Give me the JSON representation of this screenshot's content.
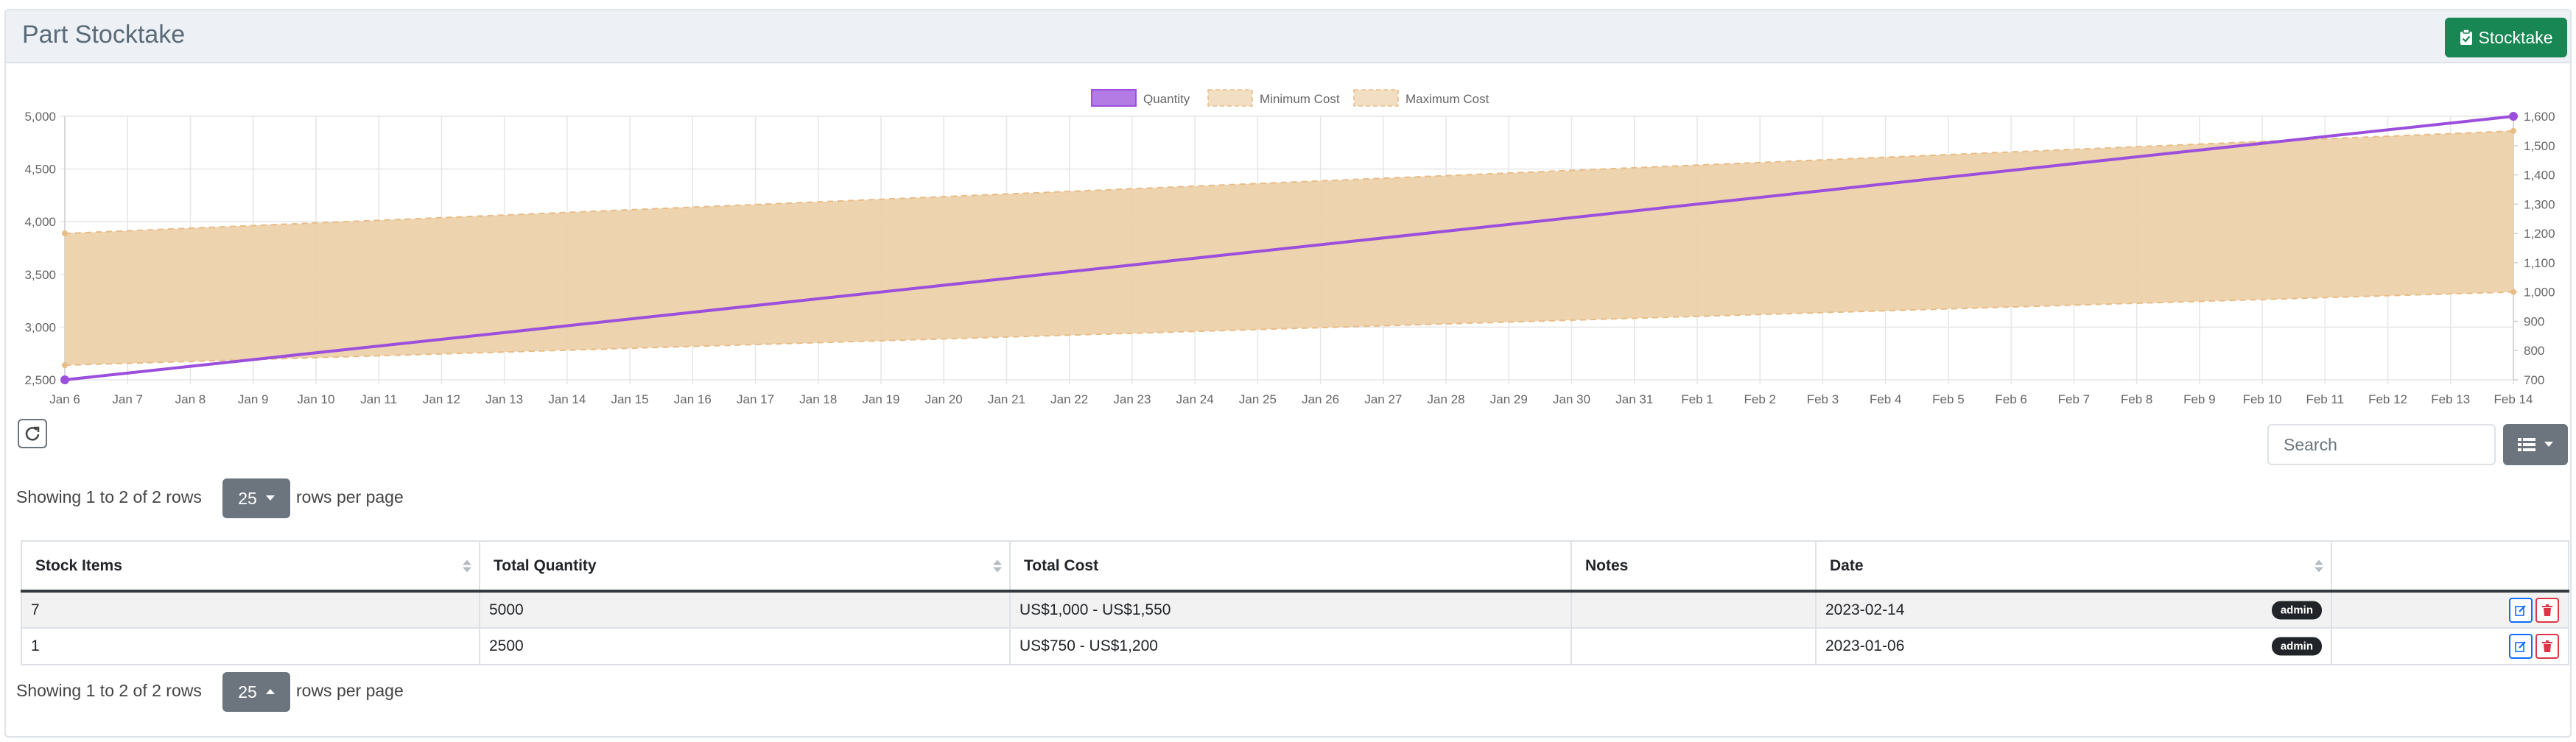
{
  "header": {
    "title": "Part Stocktake",
    "stocktake_button": "Stocktake"
  },
  "colors": {
    "quantity": "#9b4fdc",
    "cost_fill": "#ecd1aa",
    "cost_stroke": "#e8bd86",
    "success": "#198754"
  },
  "chart_data": {
    "type": "line",
    "legend": [
      "Quantity",
      "Minimum Cost",
      "Maximum Cost"
    ],
    "legend_position": "top",
    "grid": true,
    "x_dates": [
      "2023-01-06",
      "2023-02-14"
    ],
    "x_tick_labels": [
      "Jan 6",
      "Jan 7",
      "Jan 8",
      "Jan 9",
      "Jan 10",
      "Jan 11",
      "Jan 12",
      "Jan 13",
      "Jan 14",
      "Jan 15",
      "Jan 16",
      "Jan 17",
      "Jan 18",
      "Jan 19",
      "Jan 20",
      "Jan 21",
      "Jan 22",
      "Jan 23",
      "Jan 24",
      "Jan 25",
      "Jan 26",
      "Jan 27",
      "Jan 28",
      "Jan 29",
      "Jan 30",
      "Jan 31",
      "Feb 1",
      "Feb 2",
      "Feb 3",
      "Feb 4",
      "Feb 5",
      "Feb 6",
      "Feb 7",
      "Feb 8",
      "Feb 9",
      "Feb 10",
      "Feb 11",
      "Feb 12",
      "Feb 13",
      "Feb 14"
    ],
    "y_left_ticks": [
      "5,000",
      "4,500",
      "4,000",
      "3,500",
      "3,000",
      "2,500"
    ],
    "y_left_range": [
      2500,
      5000
    ],
    "y_right_ticks": [
      "1,600",
      "1,500",
      "1,400",
      "1,300",
      "1,200",
      "1,100",
      "1,000",
      "900",
      "800",
      "700"
    ],
    "y_right_range": [
      700,
      1600
    ],
    "series": [
      {
        "name": "Quantity",
        "axis": "left",
        "values": [
          2500,
          5000
        ]
      },
      {
        "name": "Minimum Cost",
        "axis": "right",
        "values": [
          750,
          1000
        ]
      },
      {
        "name": "Maximum Cost",
        "axis": "right",
        "values": [
          1200,
          1550
        ]
      }
    ]
  },
  "toolbar": {
    "search_placeholder": "Search"
  },
  "pagination": {
    "top": {
      "showing": "Showing 1 to 2 of 2 rows",
      "page_size": "25",
      "suffix": "rows per page"
    },
    "bottom": {
      "showing": "Showing 1 to 2 of 2 rows",
      "page_size": "25",
      "suffix": "rows per page"
    }
  },
  "table": {
    "columns": [
      "Stock Items",
      "Total Quantity",
      "Total Cost",
      "Notes",
      "Date",
      ""
    ],
    "rows": [
      {
        "stock_items": "7",
        "total_quantity": "5000",
        "total_cost": "US$1,000 - US$1,550",
        "notes": "",
        "date": "2023-02-14",
        "user": "admin"
      },
      {
        "stock_items": "1",
        "total_quantity": "2500",
        "total_cost": "US$750 - US$1,200",
        "notes": "",
        "date": "2023-01-06",
        "user": "admin"
      }
    ]
  }
}
